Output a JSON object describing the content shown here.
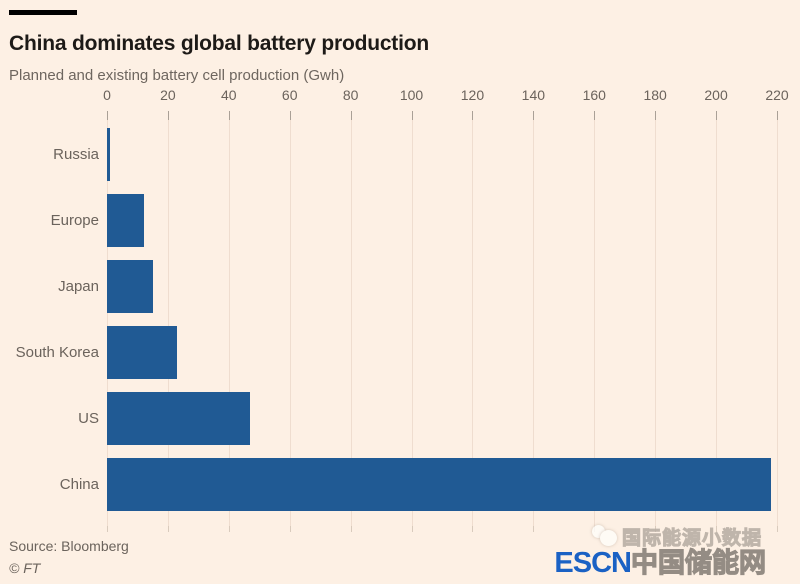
{
  "header": {
    "title": "China dominates global battery production",
    "subtitle": "Planned and existing battery cell production (Gwh)"
  },
  "chart_data": {
    "type": "bar",
    "orientation": "horizontal",
    "title": "China dominates global battery production",
    "subtitle": "Planned and existing battery cell production (Gwh)",
    "xlabel": "",
    "ylabel": "",
    "categories": [
      "Russia",
      "Europe",
      "Japan",
      "South Korea",
      "US",
      "China"
    ],
    "values": [
      1,
      12,
      15,
      23,
      47,
      218
    ],
    "axis": {
      "min": 0,
      "max": 220,
      "tick_step": 20,
      "ticks": [
        0,
        20,
        40,
        60,
        80,
        100,
        120,
        140,
        160,
        180,
        200,
        220
      ]
    },
    "grid": true,
    "legend": false,
    "bar_color": "#205a94"
  },
  "footer": {
    "source": "Source: Bloomberg",
    "copyright": "© FT"
  },
  "watermark": {
    "line1": "国际能源小数据",
    "line2_prefix": "ESCN",
    "line2_suffix": "中国储能网",
    "escn_color": "#1a61c4"
  },
  "colors": {
    "background": "#fdf0e4",
    "bar": "#205a94",
    "title_text": "#1d1a17",
    "gray_text": "#6b635c",
    "gridline": "#efddcf",
    "tick": "#aaa096",
    "rule": "#000000"
  }
}
